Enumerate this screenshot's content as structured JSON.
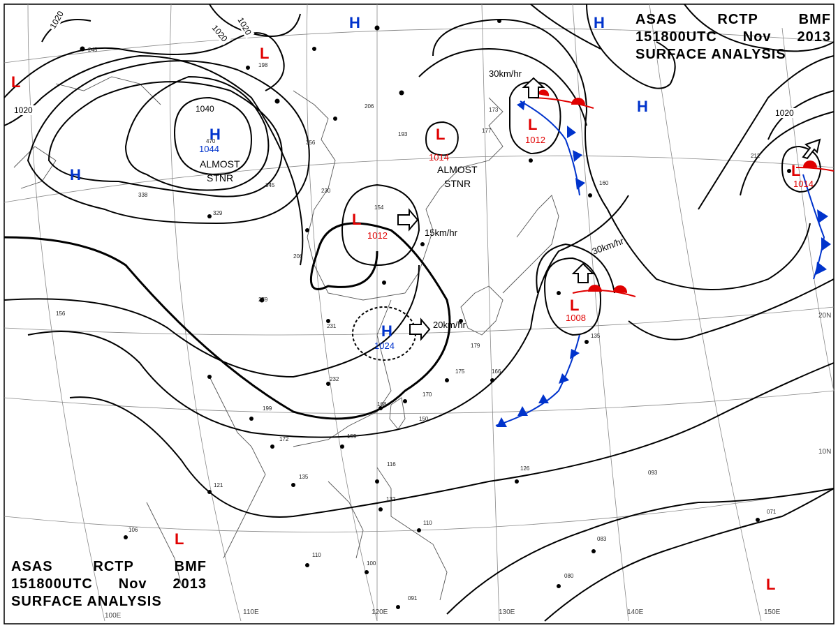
{
  "header": {
    "line1": [
      "ASAS",
      "RCTP",
      "BMF"
    ],
    "line2": [
      "151800UTC",
      "Nov",
      "2013"
    ],
    "line3": "SURFACE ANALYSIS"
  },
  "colors": {
    "high": "#0033cc",
    "low": "#e00000",
    "cold_front": "#0033cc",
    "warm_front": "#e00000",
    "isobar": "#000000",
    "grid": "#888888"
  },
  "longitude_labels": [
    "110E",
    "120E",
    "130E",
    "140E",
    "150E",
    "100E"
  ],
  "latitude_labels": [
    "20N",
    "10N"
  ],
  "isobar_labels": [
    "1020",
    "1020",
    "1020",
    "1040",
    "1020",
    "1020"
  ],
  "systems": [
    {
      "type": "H",
      "label": "1044",
      "note": "ALMOST STNR"
    },
    {
      "type": "H",
      "label": ""
    },
    {
      "type": "H",
      "label": ""
    },
    {
      "type": "H",
      "label": ""
    },
    {
      "type": "H",
      "label": ""
    },
    {
      "type": "H",
      "label": "1024"
    },
    {
      "type": "L",
      "label": ""
    },
    {
      "type": "L",
      "label": ""
    },
    {
      "type": "L",
      "label": "1014",
      "note": "ALMOST STNR"
    },
    {
      "type": "L",
      "label": "1012"
    },
    {
      "type": "L",
      "label": "1012"
    },
    {
      "type": "L",
      "label": "1008"
    },
    {
      "type": "L",
      "label": "1014"
    },
    {
      "type": "L",
      "label": ""
    },
    {
      "type": "L",
      "label": ""
    }
  ],
  "motions": [
    "15km/hr",
    "20km/hr",
    "30km/hr",
    "30km/hr"
  ],
  "station_values": [
    "245",
    "198",
    "206",
    "193",
    "177",
    "173",
    "154",
    "206",
    "230",
    "279",
    "231",
    "232",
    "199",
    "172",
    "159",
    "168",
    "170",
    "150",
    "166",
    "175",
    "179",
    "121",
    "135",
    "116",
    "132",
    "110",
    "106",
    "110",
    "100",
    "091",
    "093",
    "126",
    "083",
    "080",
    "071",
    "135",
    "160",
    "212",
    "329",
    "345",
    "338",
    "356",
    "470",
    "156"
  ]
}
